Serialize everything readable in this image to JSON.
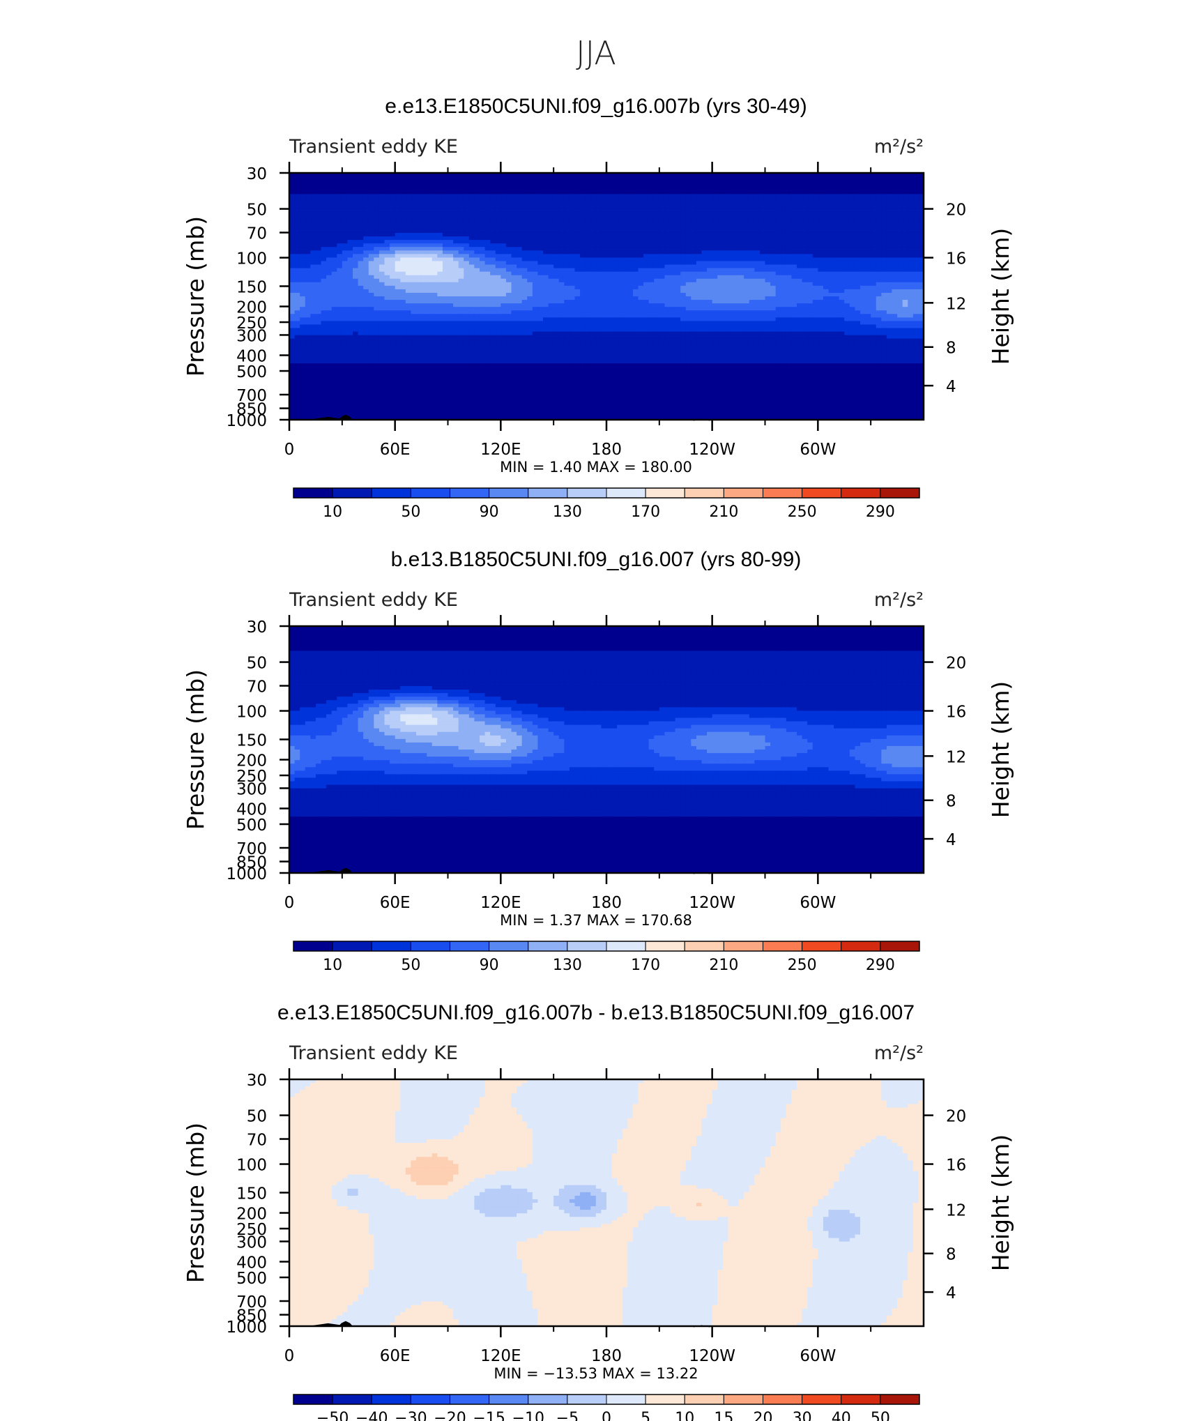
{
  "page_title": "JJA",
  "colors": {
    "seq_levels": [
      "#00008f",
      "#0019b3",
      "#0033d9",
      "#1a4df0",
      "#3366f5",
      "#5a88f2",
      "#8fb0f5",
      "#b8cdf8",
      "#dde8fb",
      "#fde8d8",
      "#fdcfb3",
      "#fca882",
      "#f97c52",
      "#f04a22",
      "#d42a0f",
      "#a8160a",
      "#7a0000"
    ],
    "diff_levels": [
      "#00008f",
      "#0019b3",
      "#0033d9",
      "#1a4df0",
      "#3366f5",
      "#5a88f2",
      "#8fb0f5",
      "#b8cdf8",
      "#dde8fb",
      "#fde8d8",
      "#fdcfb3",
      "#fca882",
      "#f97c52",
      "#f04a22",
      "#d42a0f",
      "#a8160a",
      "#7a0000"
    ],
    "topography": "#000000"
  },
  "chart_data": [
    {
      "type": "heatmap",
      "title": "e.e13.E1850C5UNI.f09_g16.007b (yrs 30-49)",
      "left_title": "Transient eddy KE",
      "units": "m²/s²",
      "ylabel": "Pressure (mb)",
      "ylabel_right": "Height (km)",
      "x_ticks": [
        "0",
        "60E",
        "120E",
        "180",
        "120W",
        "60W"
      ],
      "y_ticks": [
        "30",
        "50",
        "70",
        "100",
        "150",
        "200",
        "250",
        "300",
        "400",
        "500",
        "700",
        "850",
        "1000"
      ],
      "y_ticks_right": [
        "20",
        "16",
        "12",
        "8",
        "4"
      ],
      "stats": "MIN =    1.40   MAX =  180.00",
      "min": 1.4,
      "max": 180.0,
      "colorbar_labels": [
        "10",
        "50",
        "90",
        "130",
        "170",
        "210",
        "250",
        "290"
      ],
      "jet_core": {
        "lon": 72,
        "p": 100,
        "value": 180
      },
      "secondary_max": [
        {
          "lon": 255,
          "p": 150,
          "value": 120
        },
        {
          "lon": 350,
          "p": 200,
          "value": 115
        }
      ]
    },
    {
      "type": "heatmap",
      "title": "b.e13.B1850C5UNI.f09_g16.007 (yrs 80-99)",
      "left_title": "Transient eddy KE",
      "units": "m²/s²",
      "ylabel": "Pressure (mb)",
      "ylabel_right": "Height (km)",
      "x_ticks": [
        "0",
        "60E",
        "120E",
        "180",
        "120W",
        "60W"
      ],
      "y_ticks": [
        "30",
        "50",
        "70",
        "100",
        "150",
        "200",
        "250",
        "300",
        "400",
        "500",
        "700",
        "850",
        "1000"
      ],
      "y_ticks_right": [
        "20",
        "16",
        "12",
        "8",
        "4"
      ],
      "stats": "MIN =    1.37   MAX =  170.68",
      "min": 1.37,
      "max": 170.68,
      "colorbar_labels": [
        "10",
        "50",
        "90",
        "130",
        "170",
        "210",
        "250",
        "290"
      ],
      "jet_core": {
        "lon": 72,
        "p": 100,
        "value": 170.68
      },
      "secondary_max": [
        {
          "lon": 255,
          "p": 150,
          "value": 118
        },
        {
          "lon": 350,
          "p": 200,
          "value": 112
        }
      ]
    },
    {
      "type": "heatmap",
      "title": "e.e13.E1850C5UNI.f09_g16.007b - b.e13.B1850C5UNI.f09_g16.007",
      "left_title": "Transient eddy KE",
      "units": "m²/s²",
      "ylabel": "Pressure (mb)",
      "ylabel_right": "Height (km)",
      "x_ticks": [
        "0",
        "60E",
        "120E",
        "180",
        "120W",
        "60W"
      ],
      "y_ticks": [
        "30",
        "50",
        "70",
        "100",
        "150",
        "200",
        "250",
        "300",
        "400",
        "500",
        "700",
        "850",
        "1000"
      ],
      "y_ticks_right": [
        "20",
        "16",
        "12",
        "8",
        "4"
      ],
      "stats": "MIN =  −13.53   MAX =   13.22",
      "min": -13.53,
      "max": 13.22,
      "colorbar_labels": [
        "−50",
        "−40",
        "−30",
        "−20",
        "−15",
        "−10",
        "−5",
        "0",
        "5",
        "10",
        "15",
        "20",
        "30",
        "40",
        "50"
      ]
    }
  ]
}
